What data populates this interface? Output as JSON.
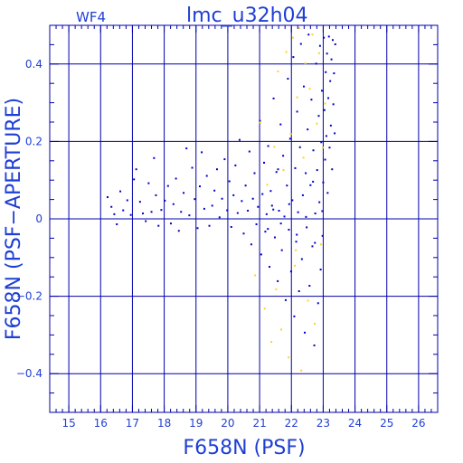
{
  "chart_data": {
    "type": "scatter",
    "title": "lmc_u32h04",
    "subtitle": "WF4",
    "xlabel": "F658N (PSF)",
    "ylabel": "F658N (PSF−APERTURE)",
    "xlim": [
      14.4,
      26.6
    ],
    "ylim": [
      -0.5,
      0.5
    ],
    "grid": true,
    "x_ticks": [
      15,
      16,
      17,
      18,
      19,
      20,
      21,
      22,
      23,
      24,
      25,
      26
    ],
    "y_ticks": [
      -0.4,
      -0.2,
      0,
      0.2,
      0.4
    ],
    "y_tick_labels": [
      "−0.4",
      "−0.2",
      "0",
      "0.2",
      "0.4"
    ],
    "colors": {
      "axis": "#0000aa",
      "grid": "#0000aa",
      "text": "#1f3fd4",
      "stars": "#0000cc",
      "highlight": "#ffd21e"
    },
    "series": [
      {
        "color": "#0000cc",
        "points": [
          [
            16.22,
            0.056
          ],
          [
            16.34,
            0.031
          ],
          [
            16.43,
            0.012
          ],
          [
            16.51,
            -0.014
          ],
          [
            16.62,
            0.071
          ],
          [
            16.71,
            0.022
          ],
          [
            16.84,
            0.048
          ],
          [
            16.95,
            0.01
          ],
          [
            17.05,
            0.102
          ],
          [
            17.12,
            0.128
          ],
          [
            17.24,
            0.044
          ],
          [
            17.33,
            0.014
          ],
          [
            17.42,
            -0.006
          ],
          [
            17.51,
            0.092
          ],
          [
            17.6,
            0.018
          ],
          [
            17.68,
            0.157
          ],
          [
            17.74,
            0.061
          ],
          [
            17.82,
            -0.018
          ],
          [
            17.91,
            0.023
          ],
          [
            18.02,
            0.047
          ],
          [
            18.12,
            0.085
          ],
          [
            18.21,
            -0.012
          ],
          [
            18.29,
            0.038
          ],
          [
            18.37,
            0.104
          ],
          [
            18.46,
            -0.031
          ],
          [
            18.53,
            0.018
          ],
          [
            18.61,
            0.067
          ],
          [
            18.7,
            0.182
          ],
          [
            18.79,
            0.009
          ],
          [
            18.88,
            0.132
          ],
          [
            18.96,
            0.051
          ],
          [
            19.05,
            -0.024
          ],
          [
            19.12,
            0.084
          ],
          [
            19.18,
            0.172
          ],
          [
            19.26,
            0.026
          ],
          [
            19.34,
            0.111
          ],
          [
            19.42,
            -0.018
          ],
          [
            19.51,
            0.034
          ],
          [
            19.58,
            0.073
          ],
          [
            19.66,
            0.128
          ],
          [
            19.74,
            0.004
          ],
          [
            19.82,
            0.052
          ],
          [
            19.9,
            0.154
          ],
          [
            19.98,
            0.022
          ],
          [
            20.05,
            0.097
          ],
          [
            20.11,
            -0.021
          ],
          [
            20.18,
            0.061
          ],
          [
            20.24,
            0.138
          ],
          [
            20.31,
            0.015
          ],
          [
            20.37,
            0.204
          ],
          [
            20.44,
            0.046
          ],
          [
            20.5,
            -0.038
          ],
          [
            20.56,
            0.086
          ],
          [
            20.63,
            0.021
          ],
          [
            20.68,
            0.174
          ],
          [
            20.74,
            -0.066
          ],
          [
            20.79,
            0.052
          ],
          [
            20.84,
            0.118
          ],
          [
            20.9,
            -0.014
          ],
          [
            20.95,
            0.031
          ],
          [
            21.01,
            0.253
          ],
          [
            21.05,
            -0.092
          ],
          [
            21.09,
            0.064
          ],
          [
            21.14,
            0.145
          ],
          [
            21.18,
            -0.033
          ],
          [
            21.22,
            0.012
          ],
          [
            21.27,
            0.188
          ],
          [
            21.31,
            -0.124
          ],
          [
            21.35,
            0.072
          ],
          [
            21.39,
            0.034
          ],
          [
            21.44,
            0.311
          ],
          [
            21.48,
            -0.048
          ],
          [
            21.53,
            0.121
          ],
          [
            21.57,
            -0.161
          ],
          [
            21.61,
            0.021
          ],
          [
            21.66,
            0.244
          ],
          [
            21.7,
            -0.081
          ],
          [
            21.74,
            0.163
          ],
          [
            21.78,
            0.006
          ],
          [
            21.82,
            -0.21
          ],
          [
            21.86,
            0.086
          ],
          [
            21.89,
            0.362
          ],
          [
            21.92,
            -0.028
          ],
          [
            21.96,
            0.207
          ],
          [
            21.99,
            -0.136
          ],
          [
            22.03,
            0.048
          ],
          [
            22.06,
            0.418
          ],
          [
            22.09,
            -0.252
          ],
          [
            22.12,
            0.131
          ],
          [
            22.15,
            -0.059
          ],
          [
            22.18,
            0.277
          ],
          [
            22.21,
            0.017
          ],
          [
            22.24,
            -0.187
          ],
          [
            22.27,
            0.185
          ],
          [
            22.3,
            0.452
          ],
          [
            22.33,
            -0.104
          ],
          [
            22.36,
            0.061
          ],
          [
            22.39,
            0.342
          ],
          [
            22.42,
            -0.294
          ],
          [
            22.45,
            0.118
          ],
          [
            22.48,
            -0.022
          ],
          [
            22.51,
            0.231
          ],
          [
            22.54,
            0.476
          ],
          [
            22.57,
            -0.173
          ],
          [
            22.6,
            0.087
          ],
          [
            22.63,
            0.308
          ],
          [
            22.66,
            -0.071
          ],
          [
            22.69,
            0.177
          ],
          [
            22.72,
            -0.327
          ],
          [
            22.75,
            0.014
          ],
          [
            22.78,
            0.401
          ],
          [
            22.81,
            0.126
          ],
          [
            22.84,
            -0.218
          ],
          [
            22.86,
            0.266
          ],
          [
            22.88,
            0.043
          ],
          [
            22.9,
            0.447
          ],
          [
            22.92,
            -0.131
          ],
          [
            22.94,
            0.198
          ],
          [
            22.96,
            0.331
          ],
          [
            22.98,
            -0.044
          ],
          [
            23.0,
            0.094
          ],
          [
            23.02,
            0.468
          ],
          [
            23.04,
            0.281
          ],
          [
            23.06,
            0.153
          ],
          [
            23.08,
            0.379
          ],
          [
            23.1,
            0.214
          ],
          [
            23.12,
            0.427
          ],
          [
            23.14,
            0.067
          ],
          [
            23.16,
            0.312
          ],
          [
            23.18,
            0.471
          ],
          [
            23.2,
            0.184
          ],
          [
            23.22,
            0.356
          ],
          [
            23.24,
            0.241
          ],
          [
            23.26,
            0.412
          ],
          [
            23.28,
            0.128
          ],
          [
            23.3,
            0.462
          ],
          [
            23.32,
            0.296
          ],
          [
            23.34,
            0.376
          ],
          [
            23.36,
            0.221
          ],
          [
            23.38,
            0.451
          ],
          [
            21.26,
            -0.026
          ],
          [
            21.43,
            0.024
          ],
          [
            21.67,
            -0.012
          ],
          [
            21.93,
            0.038
          ],
          [
            22.17,
            -0.041
          ],
          [
            22.46,
            0.005
          ],
          [
            22.74,
            -0.062
          ],
          [
            22.97,
            0.02
          ],
          [
            21.58,
            0.128
          ],
          [
            22.68,
            0.096
          ]
        ]
      },
      {
        "color": "#ffd21e",
        "points": [
          [
            20.86,
            -0.146
          ],
          [
            21.02,
            0.249
          ],
          [
            21.16,
            -0.232
          ],
          [
            21.24,
            0.088
          ],
          [
            21.37,
            -0.318
          ],
          [
            21.46,
            0.186
          ],
          [
            21.58,
            0.381
          ],
          [
            21.68,
            -0.286
          ],
          [
            21.75,
            0.126
          ],
          [
            21.84,
            0.431
          ],
          [
            21.91,
            -0.358
          ],
          [
            21.98,
            0.219
          ],
          [
            22.05,
            0.468
          ],
          [
            22.11,
            -0.121
          ],
          [
            22.18,
            0.314
          ],
          [
            22.25,
            0.493
          ],
          [
            22.31,
            -0.392
          ],
          [
            22.38,
            0.158
          ],
          [
            22.44,
            0.402
          ],
          [
            22.52,
            -0.211
          ],
          [
            22.58,
            0.336
          ],
          [
            22.66,
            0.476
          ],
          [
            22.73,
            -0.271
          ],
          [
            22.8,
            0.246
          ],
          [
            22.87,
            0.428
          ],
          [
            22.93,
            -0.066
          ],
          [
            22.99,
            0.184
          ],
          [
            23.06,
            0.298
          ],
          [
            21.52,
            -0.182
          ],
          [
            22.14,
            -0.081
          ]
        ]
      }
    ]
  }
}
